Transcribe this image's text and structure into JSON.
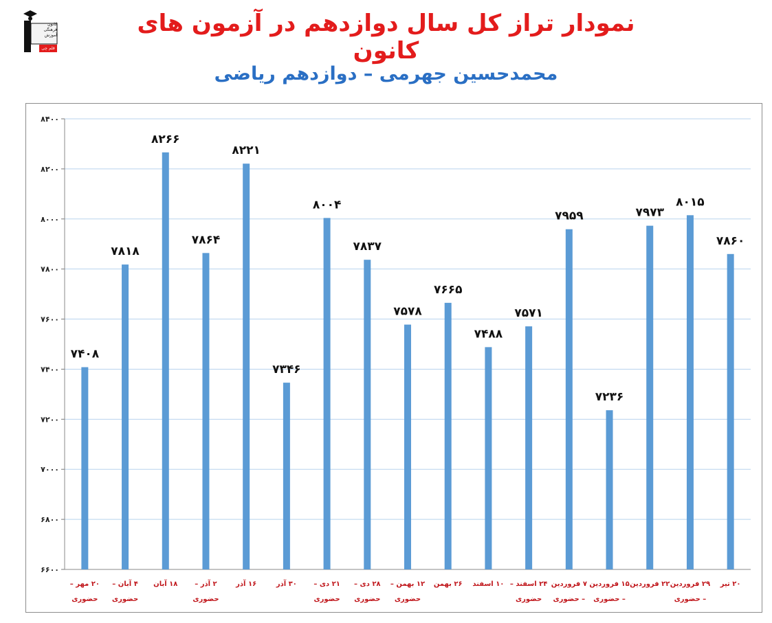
{
  "header": {
    "title": "نمودار تراز کل سال دوازدهم در آزمون های کانون",
    "subtitle": "محمدحسین جهرمی – دوازدهم ریاضی"
  },
  "logo": {
    "lines": [
      "کانون",
      "فرهنگی",
      "آموزش"
    ],
    "tag": "قلم چی"
  },
  "chart_data": {
    "type": "bar",
    "categories": [
      [
        "۲۰ مهر –",
        "حضوری"
      ],
      [
        "۴ آبان –",
        "حضوری"
      ],
      [
        "۱۸ آبان"
      ],
      [
        "۲ آذر –",
        "حضوری"
      ],
      [
        "۱۶ آذر"
      ],
      [
        "۳۰ آذر"
      ],
      [
        "۲۱ دی –",
        "حضوری"
      ],
      [
        "۲۸ دی –",
        "حضوری"
      ],
      [
        "۱۲ بهمن –",
        "حضوری"
      ],
      [
        "۲۶ بهمن"
      ],
      [
        "۱۰ اسفند"
      ],
      [
        "۲۴ اسفند –",
        "حضوری"
      ],
      [
        "۷ فروردین",
        "– حضوری"
      ],
      [
        "۱۵ فروردین",
        "– حضوری"
      ],
      [
        "۲۲ فروردین"
      ],
      [
        "۲۹ فروردین",
        "– حضوری"
      ],
      [
        "۲۰ تیر"
      ]
    ],
    "values": [
      7408,
      7818,
      8266,
      7864,
      8221,
      7346,
      8004,
      7837,
      7578,
      7665,
      7488,
      7571,
      7959,
      7236,
      7973,
      8015,
      7860
    ],
    "value_labels": [
      "۷۴۰۸",
      "۷۸۱۸",
      "۸۲۶۶",
      "۷۸۶۴",
      "۸۲۲۱",
      "۷۳۴۶",
      "۸۰۰۴",
      "۷۸۳۷",
      "۷۵۷۸",
      "۷۶۶۵",
      "۷۴۸۸",
      "۷۵۷۱",
      "۷۹۵۹",
      "۷۲۳۶",
      "۷۹۷۳",
      "۸۰۱۵",
      "۷۸۶۰"
    ],
    "yticks": [
      6600,
      6800,
      7000,
      7200,
      7400,
      7600,
      7800,
      8000,
      8200,
      8400
    ],
    "ytick_labels": [
      "۶۶۰۰",
      "۶۸۰۰",
      "۷۰۰۰",
      "۷۲۰۰",
      "۷۴۰۰",
      "۷۶۰۰",
      "۷۸۰۰",
      "۸۰۰۰",
      "۸۲۰۰",
      "۸۴۰۰"
    ],
    "ylim": [
      6600,
      8400
    ],
    "grid": true,
    "legend": "none",
    "bar_color": "#5b9bd5",
    "grid_color": "#b8d3ee"
  }
}
